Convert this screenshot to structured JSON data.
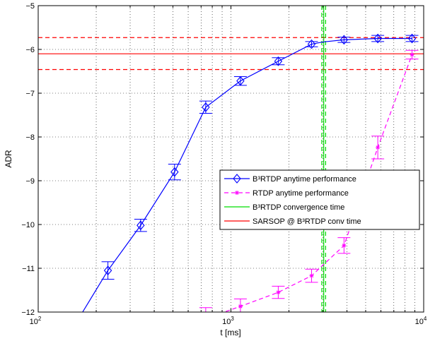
{
  "chart_data": {
    "type": "line",
    "xlabel": "t [ms]",
    "ylabel": "ADR",
    "xscale": "log",
    "xlim": [
      100,
      10000
    ],
    "ylim": [
      -12,
      -5
    ],
    "grid": true,
    "legend_position": "lower-right",
    "x_ticks": [
      {
        "value": 100,
        "base": "10",
        "exp": "2"
      },
      {
        "value": 1000,
        "base": "10",
        "exp": "3"
      },
      {
        "value": 10000,
        "base": "10",
        "exp": "4"
      }
    ],
    "y_ticks": [
      {
        "value": -12,
        "label": "−12"
      },
      {
        "value": -11,
        "label": "−11"
      },
      {
        "value": -10,
        "label": "−10"
      },
      {
        "value": -9,
        "label": "−9"
      },
      {
        "value": -8,
        "label": "−8"
      },
      {
        "value": -7,
        "label": "−7"
      },
      {
        "value": -6,
        "label": "−6"
      },
      {
        "value": -5,
        "label": "−5"
      }
    ],
    "series": [
      {
        "name": "B³RTDP anytime performance",
        "color": "#0000ff",
        "line_style": "solid",
        "marker": "diamond",
        "line_points": [
          {
            "x": 170,
            "y": -12.0
          },
          {
            "x": 230,
            "y": -11.05
          },
          {
            "x": 340,
            "y": -10.02
          },
          {
            "x": 510,
            "y": -8.8
          },
          {
            "x": 740,
            "y": -7.32
          },
          {
            "x": 1120,
            "y": -6.72
          },
          {
            "x": 1760,
            "y": -6.27
          },
          {
            "x": 2620,
            "y": -5.88
          },
          {
            "x": 3000,
            "y": -5.83
          },
          {
            "x": 3860,
            "y": -5.78
          },
          {
            "x": 5780,
            "y": -5.75
          },
          {
            "x": 8700,
            "y": -5.75
          }
        ],
        "points": [
          {
            "x": 230,
            "y": -11.05,
            "err": 0.2
          },
          {
            "x": 340,
            "y": -10.02,
            "err": 0.14
          },
          {
            "x": 510,
            "y": -8.8,
            "err": 0.18
          },
          {
            "x": 740,
            "y": -7.32,
            "err": 0.14
          },
          {
            "x": 1120,
            "y": -6.72,
            "err": 0.1
          },
          {
            "x": 1760,
            "y": -6.27,
            "err": 0.08
          },
          {
            "x": 2620,
            "y": -5.88,
            "err": 0.06
          },
          {
            "x": 3860,
            "y": -5.78,
            "err": 0.06
          },
          {
            "x": 5780,
            "y": -5.75,
            "err": 0.07
          },
          {
            "x": 8700,
            "y": -5.75,
            "err": 0.07
          }
        ]
      },
      {
        "name": "RTDP anytime performance",
        "color": "#ff00ff",
        "line_style": "dashed",
        "marker": "star",
        "line_points": [
          {
            "x": 740,
            "y": -12.15
          },
          {
            "x": 1120,
            "y": -11.87
          },
          {
            "x": 1760,
            "y": -11.55
          },
          {
            "x": 2620,
            "y": -11.17
          },
          {
            "x": 3860,
            "y": -10.48
          },
          {
            "x": 5780,
            "y": -8.24
          },
          {
            "x": 8700,
            "y": -6.12
          }
        ],
        "points": [
          {
            "x": 740,
            "y": -12.15,
            "err": 0.25
          },
          {
            "x": 1120,
            "y": -11.87,
            "err": 0.17
          },
          {
            "x": 1760,
            "y": -11.55,
            "err": 0.14
          },
          {
            "x": 2620,
            "y": -11.17,
            "err": 0.15
          },
          {
            "x": 3860,
            "y": -10.48,
            "err": 0.18
          },
          {
            "x": 5780,
            "y": -8.24,
            "err": 0.26
          },
          {
            "x": 8700,
            "y": -6.12,
            "err": 0.1
          }
        ]
      }
    ],
    "vlines": [
      {
        "name": "B³RTDP convergence time",
        "color": "#00dd00",
        "x": 3030,
        "style": "solid"
      },
      {
        "name": "B³RTDP convergence time bound",
        "color": "#00dd00",
        "x": 2960,
        "style": "dashed"
      },
      {
        "name": "B³RTDP convergence time bound",
        "color": "#00dd00",
        "x": 3100,
        "style": "dashed"
      }
    ],
    "hlines": [
      {
        "name": "SARSOP @ B³RTDP conv time",
        "color": "#ff0000",
        "y": -6.1,
        "style": "solid"
      },
      {
        "name": "SARSOP @ B³RTDP conv time bound",
        "color": "#ff0000",
        "y": -5.73,
        "style": "dashed"
      },
      {
        "name": "SARSOP @ B³RTDP conv time bound",
        "color": "#ff0000",
        "y": -6.46,
        "style": "dashed"
      }
    ],
    "legend": [
      {
        "label": "B³RTDP anytime performance",
        "color": "#0000ff",
        "style": "solid",
        "marker": "diamond"
      },
      {
        "label": "RTDP anytime performance",
        "color": "#ff00ff",
        "style": "dashed",
        "marker": "star"
      },
      {
        "label": "B³RTDP convergence time",
        "color": "#00dd00",
        "style": "solid",
        "marker": "none"
      },
      {
        "label": "SARSOP @ B³RTDP conv time",
        "color": "#ff0000",
        "style": "solid",
        "marker": "none"
      }
    ]
  }
}
